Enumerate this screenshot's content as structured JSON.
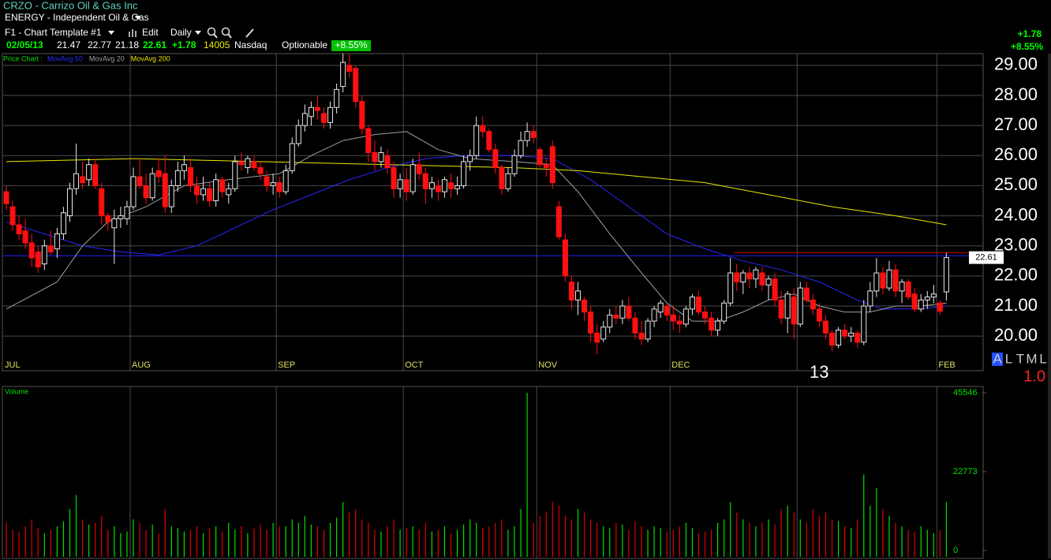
{
  "header": {
    "symbol_title": "CRZO - Carrizo Oil & Gas Inc",
    "sector": "ENERGY - Independent Oil & Gas",
    "template": "F1 - Chart Template #1",
    "edit": "Edit",
    "interval": "Daily"
  },
  "quote": {
    "date": "02/05/13",
    "open": "21.47",
    "high": "22.77",
    "low": "21.18",
    "close": "22.61",
    "change": "+1.78",
    "volume": "14005",
    "exchange": "Nasdaq",
    "optionable": "Optionable",
    "change_pct": "+8.55%"
  },
  "right_quote": {
    "change": "+1.78",
    "change_pct": "+8.55%"
  },
  "legend": {
    "price_chart": "Price Chart :"
  },
  "modes": [
    "A",
    "L",
    "T",
    "M",
    "L"
  ],
  "scale_factor": "1.0",
  "chart_data": {
    "type": "candlestick",
    "up_color": "#e8e8e8",
    "down_color": "#ff1010",
    "ylim": [
      18.85,
      29.39
    ],
    "yticks": [
      {
        "value": 29,
        "label": "29.00"
      },
      {
        "value": 28,
        "label": "28.00"
      },
      {
        "value": 27,
        "label": "27.00"
      },
      {
        "value": 26,
        "label": "26.00"
      },
      {
        "value": 25,
        "label": "25.00"
      },
      {
        "value": 24,
        "label": "24.00"
      },
      {
        "value": 23,
        "label": "23.00"
      },
      {
        "value": 22,
        "label": "22.00"
      },
      {
        "value": 21,
        "label": "21.00"
      },
      {
        "value": 20,
        "label": "20.00"
      }
    ],
    "grid": true,
    "months": [
      {
        "label": "JUL",
        "index": 0
      },
      {
        "label": "AUG",
        "index": 20
      },
      {
        "label": "SEP",
        "index": 43
      },
      {
        "label": "OCT",
        "index": 63
      },
      {
        "label": "NOV",
        "index": 84
      },
      {
        "label": "DEC",
        "index": 105
      },
      {
        "label": "13",
        "index": 125
      },
      {
        "label": "FEB",
        "index": 147
      }
    ],
    "candles": [
      [
        24.8,
        25.0,
        24.2,
        24.4
      ],
      [
        24.3,
        24.5,
        23.5,
        23.7
      ],
      [
        23.7,
        24.0,
        23.2,
        23.4
      ],
      [
        23.5,
        23.9,
        22.9,
        23.1
      ],
      [
        23.1,
        23.4,
        22.3,
        22.6
      ],
      [
        22.8,
        23.0,
        22.1,
        22.3
      ],
      [
        22.4,
        23.2,
        22.2,
        23.0
      ],
      [
        23.0,
        23.5,
        22.7,
        22.8
      ],
      [
        22.9,
        23.6,
        22.6,
        23.4
      ],
      [
        23.4,
        24.3,
        23.2,
        24.1
      ],
      [
        24.0,
        25.1,
        23.8,
        24.9
      ],
      [
        24.9,
        26.4,
        24.7,
        25.4
      ],
      [
        25.3,
        25.8,
        24.9,
        25.1
      ],
      [
        25.2,
        25.9,
        25.0,
        25.7
      ],
      [
        25.7,
        25.9,
        24.9,
        25.0
      ],
      [
        24.9,
        25.1,
        23.7,
        24.0
      ],
      [
        24.0,
        24.1,
        23.5,
        23.8
      ],
      [
        23.6,
        24.2,
        22.4,
        23.9
      ],
      [
        23.9,
        24.3,
        23.6,
        24.0
      ],
      [
        23.9,
        24.5,
        23.7,
        24.3
      ],
      [
        24.3,
        25.6,
        24.2,
        25.3
      ],
      [
        25.3,
        25.9,
        24.9,
        25.0
      ],
      [
        25.0,
        25.4,
        24.4,
        24.6
      ],
      [
        24.6,
        25.6,
        24.5,
        25.4
      ],
      [
        25.5,
        25.9,
        25.1,
        25.3
      ],
      [
        25.4,
        26.0,
        24.1,
        24.3
      ],
      [
        24.3,
        25.2,
        24.1,
        25.0
      ],
      [
        25.0,
        25.8,
        24.8,
        25.5
      ],
      [
        25.5,
        26.0,
        25.2,
        25.7
      ],
      [
        25.6,
        25.9,
        24.8,
        25.0
      ],
      [
        25.0,
        25.3,
        24.4,
        24.7
      ],
      [
        24.7,
        25.3,
        24.5,
        24.9
      ],
      [
        24.9,
        25.1,
        24.3,
        24.5
      ],
      [
        24.5,
        25.4,
        24.3,
        25.2
      ],
      [
        25.2,
        25.3,
        24.6,
        24.8
      ],
      [
        24.7,
        25.1,
        24.4,
        24.9
      ],
      [
        24.9,
        26.0,
        24.8,
        25.8
      ],
      [
        25.8,
        26.1,
        25.5,
        25.7
      ],
      [
        25.6,
        26.0,
        25.4,
        25.9
      ],
      [
        25.8,
        26.0,
        25.5,
        25.6
      ],
      [
        25.6,
        25.8,
        25.2,
        25.4
      ],
      [
        25.3,
        25.5,
        24.8,
        25.0
      ],
      [
        25.0,
        25.4,
        24.7,
        25.1
      ],
      [
        25.1,
        25.3,
        24.6,
        24.8
      ],
      [
        24.8,
        25.7,
        24.7,
        25.5
      ],
      [
        25.5,
        26.6,
        25.4,
        26.4
      ],
      [
        26.4,
        27.2,
        26.3,
        27.0
      ],
      [
        27.0,
        27.7,
        26.8,
        27.4
      ],
      [
        27.3,
        27.8,
        27.0,
        27.6
      ],
      [
        27.6,
        28.0,
        27.2,
        27.5
      ],
      [
        27.4,
        27.6,
        26.9,
        27.1
      ],
      [
        27.1,
        27.8,
        26.9,
        27.6
      ],
      [
        27.6,
        28.4,
        27.4,
        28.2
      ],
      [
        28.3,
        29.4,
        28.1,
        29.1
      ],
      [
        29.0,
        29.4,
        28.6,
        28.8
      ],
      [
        28.9,
        29.0,
        27.6,
        27.8
      ],
      [
        27.8,
        28.0,
        26.7,
        26.9
      ],
      [
        26.9,
        27.0,
        25.8,
        26.1
      ],
      [
        26.1,
        26.5,
        25.5,
        25.8
      ],
      [
        25.8,
        26.3,
        25.6,
        26.1
      ],
      [
        26.0,
        26.2,
        25.4,
        25.6
      ],
      [
        25.6,
        25.8,
        24.6,
        24.9
      ],
      [
        24.9,
        25.4,
        24.6,
        25.2
      ],
      [
        25.2,
        25.6,
        24.5,
        24.8
      ],
      [
        24.8,
        25.9,
        24.7,
        25.7
      ],
      [
        25.7,
        26.1,
        25.2,
        25.4
      ],
      [
        25.4,
        25.6,
        24.4,
        24.9
      ],
      [
        24.9,
        25.3,
        24.6,
        25.1
      ],
      [
        25.0,
        25.2,
        24.5,
        24.8
      ],
      [
        24.8,
        25.3,
        24.6,
        25.2
      ],
      [
        25.1,
        25.4,
        24.6,
        24.9
      ],
      [
        24.9,
        25.3,
        24.7,
        25.0
      ],
      [
        25.0,
        26.0,
        24.9,
        25.8
      ],
      [
        25.8,
        26.2,
        25.5,
        26.0
      ],
      [
        26.0,
        27.3,
        25.9,
        27.0
      ],
      [
        27.0,
        27.3,
        26.6,
        26.8
      ],
      [
        26.8,
        26.9,
        26.1,
        26.2
      ],
      [
        26.2,
        26.4,
        25.4,
        25.6
      ],
      [
        25.6,
        25.7,
        24.7,
        24.9
      ],
      [
        24.9,
        25.6,
        24.8,
        25.4
      ],
      [
        25.4,
        26.2,
        25.3,
        26.0
      ],
      [
        26.0,
        26.8,
        25.9,
        26.5
      ],
      [
        26.5,
        27.1,
        26.3,
        26.8
      ],
      [
        26.8,
        27.0,
        26.4,
        26.6
      ],
      [
        26.2,
        26.3,
        25.6,
        25.7
      ],
      [
        25.7,
        25.9,
        25.3,
        25.6
      ],
      [
        26.3,
        26.5,
        24.9,
        25.1
      ],
      [
        24.3,
        24.5,
        23.2,
        23.3
      ],
      [
        23.2,
        23.4,
        21.8,
        22.0
      ],
      [
        21.8,
        22.0,
        20.9,
        21.2
      ],
      [
        21.2,
        21.8,
        20.7,
        21.5
      ],
      [
        21.2,
        21.3,
        20.5,
        20.8
      ],
      [
        20.8,
        21.0,
        19.8,
        20.1
      ],
      [
        20.1,
        20.4,
        19.4,
        19.8
      ],
      [
        19.9,
        20.5,
        19.8,
        20.3
      ],
      [
        20.3,
        20.9,
        20.1,
        20.7
      ],
      [
        20.7,
        21.0,
        20.4,
        20.6
      ],
      [
        20.6,
        21.2,
        20.4,
        21.0
      ],
      [
        21.0,
        21.3,
        20.5,
        20.6
      ],
      [
        20.6,
        20.8,
        19.9,
        20.1
      ],
      [
        20.1,
        20.5,
        19.7,
        19.9
      ],
      [
        19.9,
        20.6,
        19.8,
        20.5
      ],
      [
        20.5,
        21.0,
        20.3,
        20.9
      ],
      [
        20.8,
        21.2,
        20.6,
        21.1
      ],
      [
        21.0,
        21.1,
        20.5,
        20.7
      ],
      [
        20.7,
        21.0,
        20.2,
        20.5
      ],
      [
        20.5,
        20.7,
        20.1,
        20.4
      ],
      [
        20.4,
        21.0,
        20.3,
        20.9
      ],
      [
        20.9,
        21.4,
        20.7,
        21.3
      ],
      [
        21.3,
        21.5,
        20.7,
        20.8
      ],
      [
        20.8,
        21.0,
        20.4,
        20.6
      ],
      [
        20.6,
        20.8,
        20.0,
        20.2
      ],
      [
        20.2,
        20.6,
        20.0,
        20.5
      ],
      [
        20.5,
        21.2,
        20.4,
        21.1
      ],
      [
        21.1,
        22.6,
        21.0,
        22.1
      ],
      [
        22.1,
        22.4,
        21.5,
        21.8
      ],
      [
        21.8,
        22.2,
        21.4,
        22.1
      ],
      [
        22.1,
        22.3,
        21.6,
        21.9
      ],
      [
        21.9,
        22.3,
        21.6,
        22.2
      ],
      [
        22.1,
        22.3,
        21.5,
        21.7
      ],
      [
        21.7,
        22.0,
        21.2,
        21.9
      ],
      [
        21.9,
        22.1,
        21.0,
        21.2
      ],
      [
        21.2,
        21.5,
        20.4,
        20.6
      ],
      [
        20.6,
        21.5,
        20.1,
        21.4
      ],
      [
        21.3,
        21.6,
        19.9,
        20.4
      ],
      [
        20.4,
        21.8,
        20.3,
        21.6
      ],
      [
        21.6,
        21.8,
        21.1,
        21.2
      ],
      [
        21.2,
        21.4,
        20.7,
        20.9
      ],
      [
        20.9,
        21.1,
        20.3,
        20.5
      ],
      [
        20.5,
        20.7,
        19.9,
        20.1
      ],
      [
        20.1,
        20.2,
        19.5,
        19.7
      ],
      [
        19.7,
        20.3,
        19.6,
        20.2
      ],
      [
        20.2,
        20.4,
        19.9,
        20.0
      ],
      [
        20.0,
        20.3,
        19.8,
        20.1
      ],
      [
        20.1,
        20.2,
        19.6,
        19.8
      ],
      [
        19.8,
        21.2,
        19.7,
        21.0
      ],
      [
        21.0,
        21.8,
        20.8,
        21.5
      ],
      [
        21.5,
        22.6,
        21.3,
        22.1
      ],
      [
        22.1,
        22.3,
        21.4,
        21.6
      ],
      [
        21.6,
        22.5,
        21.5,
        22.2
      ],
      [
        22.2,
        22.4,
        21.3,
        21.5
      ],
      [
        21.5,
        21.9,
        21.1,
        21.8
      ],
      [
        21.8,
        21.9,
        21.2,
        21.3
      ],
      [
        21.4,
        21.6,
        20.8,
        20.9
      ],
      [
        20.9,
        21.4,
        20.8,
        21.2
      ],
      [
        21.2,
        21.5,
        20.9,
        21.3
      ],
      [
        21.3,
        21.7,
        21.1,
        21.4
      ],
      [
        21.1,
        21.2,
        20.7,
        20.83
      ],
      [
        21.47,
        22.77,
        21.18,
        22.61
      ]
    ],
    "ma_series": [
      {
        "name": "MovAvg 50",
        "color": "#2828ff",
        "x": [
          0,
          6,
          12,
          18,
          24,
          30,
          36,
          42,
          48,
          54,
          60,
          66,
          72,
          80,
          86,
          92,
          98,
          104,
          110,
          116,
          122,
          128,
          134,
          138,
          144,
          148
        ],
        "values": [
          23.8,
          23.4,
          23.0,
          22.8,
          22.7,
          23.0,
          23.6,
          24.2,
          24.7,
          25.2,
          25.6,
          25.9,
          26.0,
          26.0,
          25.9,
          25.2,
          24.3,
          23.4,
          22.9,
          22.5,
          22.2,
          21.8,
          21.2,
          20.9,
          20.9,
          21.0
        ]
      },
      {
        "name": "MovAvg 20",
        "color": "#a0a0a0",
        "x": [
          0,
          8,
          12,
          16,
          22,
          28,
          35,
          43,
          48,
          53,
          58,
          63,
          68,
          73,
          80,
          86,
          90,
          95,
          100,
          104,
          108,
          112,
          116,
          120,
          124,
          128,
          132,
          136,
          140,
          144,
          148
        ],
        "values": [
          20.9,
          21.8,
          23.0,
          23.8,
          24.3,
          25.0,
          25.2,
          25.4,
          26.0,
          26.5,
          26.7,
          26.8,
          26.2,
          25.9,
          25.8,
          25.7,
          24.8,
          23.4,
          22.1,
          21.1,
          20.5,
          20.5,
          20.8,
          21.2,
          21.4,
          21.0,
          20.8,
          20.8,
          21.0,
          21.0,
          21.1
        ]
      },
      {
        "name": "MovAvg 200",
        "color": "#e8e800",
        "x": [
          0,
          20,
          40,
          60,
          80,
          90,
          100,
          110,
          120,
          130,
          140,
          148
        ],
        "values": [
          25.8,
          25.9,
          25.8,
          25.7,
          25.6,
          25.5,
          25.3,
          25.1,
          24.7,
          24.3,
          24.0,
          23.7
        ]
      }
    ],
    "reference_lines": [
      {
        "value": 22.67,
        "color": "#2020ff",
        "from_index": 0
      },
      {
        "value": 22.77,
        "color": "#c00000",
        "from_index": 115
      }
    ],
    "volume": {
      "title": "Volume",
      "up_color": "#00e000",
      "down_color": "#e00000",
      "ylim": [
        0,
        45546
      ],
      "yticks": [
        45546,
        22773,
        0
      ],
      "values": [
        8000,
        6000,
        5500,
        7000,
        9000,
        6500,
        5000,
        6000,
        7000,
        8500,
        12000,
        16000,
        9000,
        7500,
        8000,
        10000,
        6000,
        7000,
        5000,
        5500,
        9000,
        8000,
        6000,
        7500,
        5000,
        12000,
        7000,
        6500,
        5500,
        6000,
        7000,
        5000,
        6500,
        7000,
        5500,
        8000,
        6000,
        7000,
        5000,
        6500,
        7500,
        6000,
        8000,
        7000,
        7000,
        9000,
        8000,
        10000,
        7500,
        7000,
        6000,
        8000,
        9500,
        14000,
        11000,
        12000,
        9000,
        8000,
        6000,
        5500,
        7000,
        9000,
        6000,
        6500,
        7000,
        6000,
        8000,
        5500,
        6000,
        7000,
        5000,
        6000,
        7500,
        9000,
        8000,
        6500,
        7000,
        8000,
        9000,
        6000,
        7000,
        12000,
        45546,
        8000,
        10000,
        11000,
        14000,
        13000,
        10000,
        9000,
        12000,
        11000,
        9000,
        8000,
        7000,
        6500,
        8000,
        7500,
        6000,
        8500,
        7000,
        6000,
        7000,
        6500,
        5500,
        6000,
        7000,
        8000,
        6500,
        5000,
        5500,
        6000,
        8000,
        9000,
        14000,
        11000,
        9000,
        8000,
        7000,
        8000,
        9000,
        7500,
        12000,
        13000,
        11000,
        9000,
        8000,
        12000,
        10000,
        11000,
        9000,
        8500,
        7000,
        6500,
        9000,
        22000,
        13000,
        18000,
        12000,
        10000,
        8000,
        7000,
        6000,
        5500,
        7000,
        6000,
        5000,
        6000,
        14005
      ]
    }
  }
}
